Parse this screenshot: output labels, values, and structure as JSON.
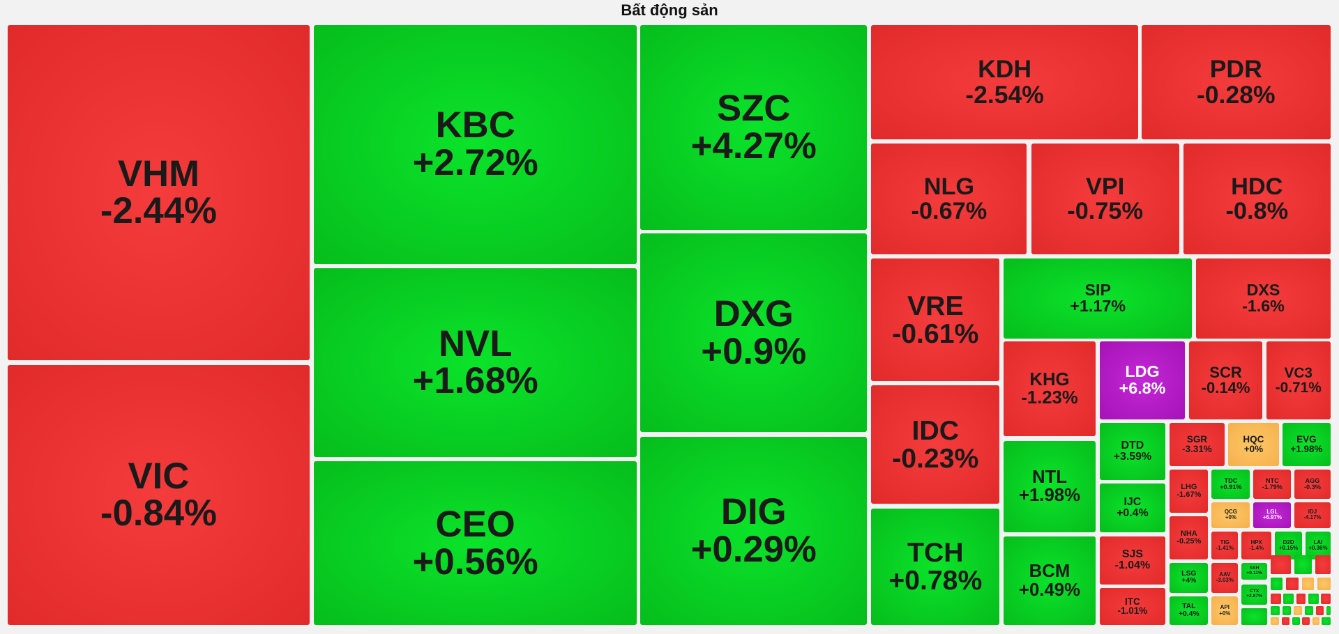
{
  "title": "Bất động sản",
  "colors": {
    "down": "#e82e2e",
    "up": "#08d224",
    "ceiling": "#b31ac4",
    "reference": "#f7b955",
    "background": "#f2f2f2"
  },
  "chart_data": {
    "type": "treemap",
    "title": "Bất động sản",
    "items": [
      {
        "symbol": "VHM",
        "change": "-2.44%",
        "value": -2.44,
        "status": "down"
      },
      {
        "symbol": "VIC",
        "change": "-0.84%",
        "value": -0.84,
        "status": "down"
      },
      {
        "symbol": "KBC",
        "change": "+2.72%",
        "value": 2.72,
        "status": "up"
      },
      {
        "symbol": "NVL",
        "change": "+1.68%",
        "value": 1.68,
        "status": "up"
      },
      {
        "symbol": "CEO",
        "change": "+0.56%",
        "value": 0.56,
        "status": "up"
      },
      {
        "symbol": "SZC",
        "change": "+4.27%",
        "value": 4.27,
        "status": "up"
      },
      {
        "symbol": "DXG",
        "change": "+0.9%",
        "value": 0.9,
        "status": "up"
      },
      {
        "symbol": "DIG",
        "change": "+0.29%",
        "value": 0.29,
        "status": "up"
      },
      {
        "symbol": "KDH",
        "change": "-2.54%",
        "value": -2.54,
        "status": "down"
      },
      {
        "symbol": "PDR",
        "change": "-0.28%",
        "value": -0.28,
        "status": "down"
      },
      {
        "symbol": "NLG",
        "change": "-0.67%",
        "value": -0.67,
        "status": "down"
      },
      {
        "symbol": "VPI",
        "change": "-0.75%",
        "value": -0.75,
        "status": "down"
      },
      {
        "symbol": "HDC",
        "change": "-0.8%",
        "value": -0.8,
        "status": "down"
      },
      {
        "symbol": "VRE",
        "change": "-0.61%",
        "value": -0.61,
        "status": "down"
      },
      {
        "symbol": "SIP",
        "change": "+1.17%",
        "value": 1.17,
        "status": "up"
      },
      {
        "symbol": "DXS",
        "change": "-1.6%",
        "value": -1.6,
        "status": "down"
      },
      {
        "symbol": "IDC",
        "change": "-0.23%",
        "value": -0.23,
        "status": "down"
      },
      {
        "symbol": "TCH",
        "change": "+0.78%",
        "value": 0.78,
        "status": "up"
      },
      {
        "symbol": "KHG",
        "change": "-1.23%",
        "value": -1.23,
        "status": "down"
      },
      {
        "symbol": "LDG",
        "change": "+6.8%",
        "value": 6.8,
        "status": "ceiling"
      },
      {
        "symbol": "SCR",
        "change": "-0.14%",
        "value": -0.14,
        "status": "down"
      },
      {
        "symbol": "VC3",
        "change": "-0.71%",
        "value": -0.71,
        "status": "down"
      },
      {
        "symbol": "NTL",
        "change": "+1.98%",
        "value": 1.98,
        "status": "up"
      },
      {
        "symbol": "BCM",
        "change": "+0.49%",
        "value": 0.49,
        "status": "up"
      },
      {
        "symbol": "DTD",
        "change": "+3.59%",
        "value": 3.59,
        "status": "up"
      },
      {
        "symbol": "IJC",
        "change": "+0.4%",
        "value": 0.4,
        "status": "up"
      },
      {
        "symbol": "SJS",
        "change": "-1.04%",
        "value": -1.04,
        "status": "down"
      },
      {
        "symbol": "ITC",
        "change": "-1.01%",
        "value": -1.01,
        "status": "down"
      },
      {
        "symbol": "SGR",
        "change": "-3.31%",
        "value": -3.31,
        "status": "down"
      },
      {
        "symbol": "HQC",
        "change": "+0%",
        "value": 0,
        "status": "reference"
      },
      {
        "symbol": "EVG",
        "change": "+1.98%",
        "value": 1.98,
        "status": "up"
      },
      {
        "symbol": "LHG",
        "change": "-1.67%",
        "value": -1.67,
        "status": "down"
      },
      {
        "symbol": "TDC",
        "change": "+0.91%",
        "value": 0.91,
        "status": "up"
      },
      {
        "symbol": "NTC",
        "change": "-1.79%",
        "value": -1.79,
        "status": "down"
      },
      {
        "symbol": "AGG",
        "change": "-0.3%",
        "value": -0.3,
        "status": "down"
      },
      {
        "symbol": "QCG",
        "change": "+0%",
        "value": 0,
        "status": "reference"
      },
      {
        "symbol": "LGL",
        "change": "+6.97%",
        "value": 6.97,
        "status": "ceiling"
      },
      {
        "symbol": "IDJ",
        "change": "-4.17%",
        "value": -4.17,
        "status": "down"
      },
      {
        "symbol": "NHA",
        "change": "-0.25%",
        "value": -0.25,
        "status": "down"
      },
      {
        "symbol": "TIG",
        "change": "-1.41%",
        "value": -1.41,
        "status": "down"
      },
      {
        "symbol": "HPX",
        "change": "-1.4%",
        "value": -1.4,
        "status": "down"
      },
      {
        "symbol": "D2D",
        "change": "+0.15%",
        "value": 0.15,
        "status": "up"
      },
      {
        "symbol": "LAI",
        "change": "+0.36%",
        "value": 0.36,
        "status": "up"
      },
      {
        "symbol": "LSG",
        "change": "+4%",
        "value": 4,
        "status": "up"
      },
      {
        "symbol": "AAV",
        "change": "-3.03%",
        "value": -3.03,
        "status": "down"
      },
      {
        "symbol": "SSH",
        "change": "+0.11%",
        "value": 0.11,
        "status": "up"
      },
      {
        "symbol": "CTX",
        "change": "+2.87%",
        "value": 2.87,
        "status": "up"
      },
      {
        "symbol": "TAL",
        "change": "+0.4%",
        "value": 0.4,
        "status": "up"
      },
      {
        "symbol": "API",
        "change": "+0%",
        "value": 0,
        "status": "reference"
      }
    ],
    "unlabeled_tiles": [
      {
        "status": "down"
      },
      {
        "status": "up"
      },
      {
        "status": "down"
      },
      {
        "status": "up"
      },
      {
        "status": "down"
      },
      {
        "status": "reference"
      },
      {
        "status": "reference"
      },
      {
        "status": "down"
      },
      {
        "status": "up"
      },
      {
        "status": "down"
      },
      {
        "status": "up"
      },
      {
        "status": "down"
      },
      {
        "status": "up"
      },
      {
        "status": "up"
      },
      {
        "status": "reference"
      },
      {
        "status": "up"
      },
      {
        "status": "down"
      },
      {
        "status": "up"
      },
      {
        "status": "reference"
      },
      {
        "status": "down"
      },
      {
        "status": "up"
      },
      {
        "status": "down"
      },
      {
        "status": "reference"
      },
      {
        "status": "up"
      },
      {
        "status": "up"
      },
      {
        "status": "up"
      },
      {
        "status": "down"
      },
      {
        "status": "up"
      }
    ]
  }
}
